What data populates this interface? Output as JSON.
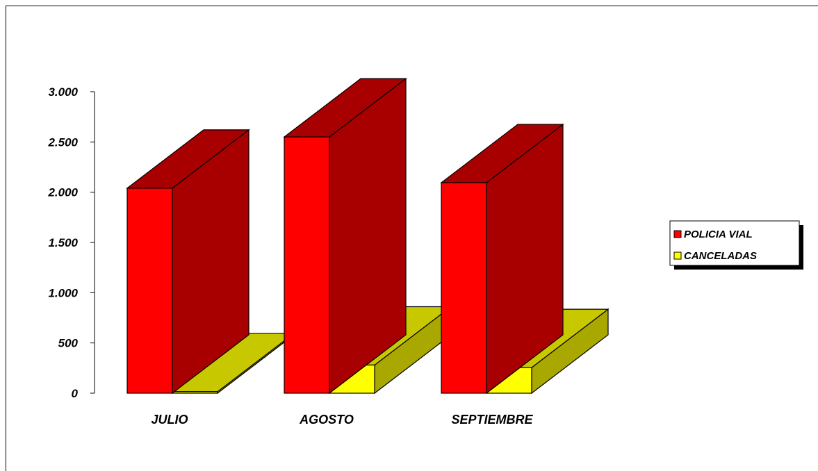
{
  "chart_data": {
    "type": "bar",
    "categories": [
      "JULIO",
      "AGOSTO",
      "SEPTIEMBRE"
    ],
    "series": [
      {
        "name": "POLICIA VIAL",
        "values": [
          2040,
          2550,
          2095
        ],
        "color": "#ff0000",
        "side_color": "#a80000"
      },
      {
        "name": "CANCELADAS",
        "values": [
          15,
          280,
          255
        ],
        "color": "#ffff00",
        "side_color": "#a8a800",
        "top_color": "#c8c800"
      }
    ],
    "ylim": [
      0,
      3000
    ],
    "yticks": [
      0,
      500,
      1000,
      1500,
      2000,
      2500,
      3000
    ],
    "ytick_labels": [
      "0",
      "500",
      "1.000",
      "1.500",
      "2.000",
      "2.500",
      "3.000"
    ],
    "grid": false,
    "legend": "right",
    "title": "",
    "xlabel": "",
    "ylabel": ""
  }
}
